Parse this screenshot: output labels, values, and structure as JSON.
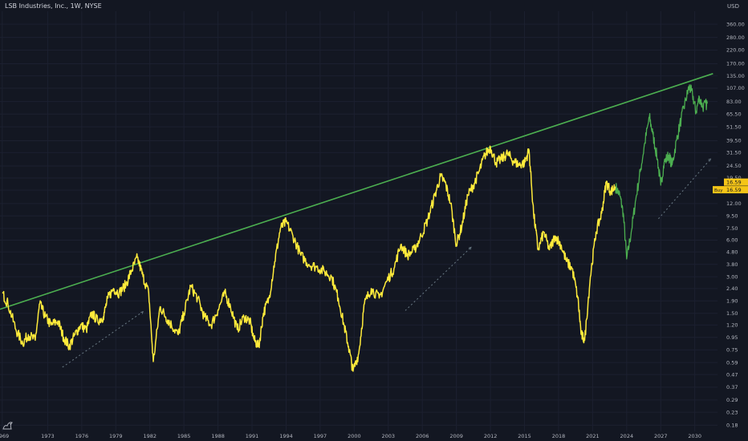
{
  "header": {
    "title": "LSB Industries, Inc., 1W, NYSE",
    "currency": "USD"
  },
  "colors": {
    "background": "#131722",
    "price_line": "#ffeb3b",
    "projection_line": "#4caf50",
    "trendline": "#4caf50",
    "dotted_guides": "#6a7a85",
    "axis_text": "#b2b5be",
    "price_badge": "#f5c518"
  },
  "chart_data": {
    "type": "line",
    "y_scale": "log",
    "ylim": [
      0.16,
      460
    ],
    "xlim": [
      1968.8,
      2032.0
    ],
    "y_ticks": [
      0.18,
      0.23,
      0.29,
      0.37,
      0.47,
      0.59,
      0.75,
      0.95,
      1.2,
      1.5,
      1.9,
      2.4,
      3.0,
      3.8,
      4.8,
      6.0,
      7.5,
      9.5,
      12.0,
      15.5,
      19.5,
      24.5,
      31.5,
      39.5,
      51.5,
      65.5,
      83.0,
      107.0,
      135.0,
      170.0,
      220.0,
      280.0,
      360.0
    ],
    "y_tick_labels": [
      "0.18",
      "0.23",
      "0.29",
      "0.37",
      "0.47",
      "0.59",
      "0.75",
      "0.95",
      "1.20",
      "1.50",
      "1.90",
      "2.40",
      "3.00",
      "3.80",
      "4.80",
      "6.00",
      "7.50",
      "9.50",
      "12.00",
      "15.50",
      "19.50",
      "24.50",
      "31.50",
      "39.50",
      "51.50",
      "65.50",
      "83.00",
      "107.00",
      "135.00",
      "170.00",
      "220.00",
      "280.00",
      "360.00"
    ],
    "x_ticks": [
      1969,
      1973,
      1976,
      1979,
      1982,
      1985,
      1988,
      1991,
      1994,
      1997,
      2000,
      2003,
      2006,
      2009,
      2012,
      2015,
      2018,
      2021,
      2024,
      2027,
      2030
    ],
    "x_tick_labels": [
      "1969",
      "1973",
      "1976",
      "1979",
      "1982",
      "1985",
      "1988",
      "1991",
      "1994",
      "1997",
      "2000",
      "2003",
      "2006",
      "2009",
      "2012",
      "2015",
      "2018",
      "2021",
      "2024",
      "2027",
      "2030"
    ],
    "current_price": 16.59,
    "current_price_label": "16.59",
    "badge_prefix": "Buy",
    "badge_value": "16.59",
    "series": [
      {
        "role": "price",
        "x": [
          1969.0,
          1969.5,
          1970.2,
          1970.8,
          1971.3,
          1971.9,
          1972.3,
          1972.8,
          1973.3,
          1973.9,
          1974.4,
          1974.9,
          1975.4,
          1975.9,
          1976.4,
          1976.9,
          1977.4,
          1977.9,
          1978.3,
          1978.8,
          1979.3,
          1979.9,
          1980.4,
          1980.9,
          1981.4,
          1981.9,
          1982.3,
          1982.9,
          1983.4,
          1983.9,
          1984.5,
          1985.0,
          1985.6,
          1986.2,
          1986.8,
          1987.4,
          1988.0,
          1988.6,
          1989.1,
          1989.7,
          1990.3,
          1990.8,
          1991.2,
          1991.6,
          1992.0,
          1992.5,
          1993.0,
          1993.5,
          1994.0,
          1994.6,
          1995.3,
          1996.0,
          1996.7,
          1997.4,
          1998.0,
          1998.6,
          1999.1,
          1999.5,
          1999.9,
          2000.4,
          2000.9,
          2001.5,
          2002.2,
          2002.9,
          2003.5,
          2004.1,
          2004.7,
          2005.3,
          2005.9,
          2006.5,
          2007.1,
          2007.6,
          2008.0,
          2008.5,
          2009.0,
          2009.5,
          2010.0,
          2010.5,
          2011.0,
          2011.5,
          2012.0,
          2012.5,
          2013.0,
          2013.5,
          2014.0,
          2014.5,
          2015.0,
          2015.4,
          2015.8,
          2016.2,
          2016.7,
          2017.2,
          2017.7,
          2018.2,
          2018.7,
          2019.2,
          2019.7,
          2020.0,
          2020.3,
          2020.8,
          2021.3,
          2021.8,
          2022.2,
          2022.6,
          2023.0
        ],
        "values": [
          2.2,
          1.8,
          1.1,
          0.85,
          1.0,
          0.9,
          1.8,
          1.4,
          1.2,
          1.3,
          0.95,
          0.8,
          1.0,
          1.2,
          1.1,
          1.5,
          1.3,
          1.4,
          2.0,
          2.4,
          2.2,
          2.6,
          3.4,
          4.3,
          3.0,
          2.2,
          0.6,
          1.7,
          1.4,
          1.2,
          1.0,
          1.5,
          2.5,
          2.0,
          1.4,
          1.2,
          1.6,
          2.2,
          1.7,
          1.1,
          1.4,
          1.3,
          0.9,
          0.8,
          1.5,
          2.0,
          4.0,
          7.5,
          8.5,
          6.5,
          4.5,
          3.8,
          3.6,
          3.3,
          3.0,
          2.0,
          1.2,
          0.8,
          0.5,
          0.7,
          1.8,
          2.4,
          2.0,
          2.8,
          3.5,
          5.5,
          4.5,
          5.0,
          6.5,
          9.0,
          14.0,
          20.0,
          18.0,
          12.0,
          5.5,
          8.0,
          14.0,
          17.0,
          22.0,
          30.0,
          35.0,
          26.0,
          28.0,
          31.0,
          27.0,
          25.0,
          26.0,
          33.0,
          10.0,
          5.0,
          7.0,
          5.0,
          6.5,
          5.5,
          4.0,
          3.5,
          2.0,
          1.0,
          0.9,
          3.0,
          7.0,
          10.0,
          18.0,
          15.0,
          16.59
        ]
      },
      {
        "role": "projection",
        "x": [
          2023.0,
          2023.4,
          2023.7,
          2024.0,
          2024.4,
          2024.8,
          2025.2,
          2025.6,
          2026.0,
          2026.3,
          2026.7,
          2027.0,
          2027.3,
          2027.7,
          2028.0,
          2028.4,
          2028.8,
          2029.2,
          2029.5,
          2029.8,
          2030.1,
          2030.4,
          2030.7,
          2031.1
        ],
        "values": [
          16.59,
          14.0,
          10.0,
          4.2,
          7.0,
          13.0,
          22.0,
          38.0,
          62.0,
          45.0,
          28.0,
          17.0,
          26.0,
          30.0,
          25.0,
          40.0,
          60.0,
          85.0,
          110.0,
          95.0,
          68.0,
          90.0,
          75.0,
          80.0
        ]
      }
    ],
    "trendline": {
      "x": [
        1968.8,
        2031.6
      ],
      "values": [
        1.62,
        141.0
      ]
    },
    "guides": [
      {
        "x": [
          1974.3,
          1981.4
        ],
        "values": [
          0.54,
          1.55
        ]
      },
      {
        "x": [
          2004.5,
          2010.3
        ],
        "values": [
          1.58,
          5.25
        ]
      },
      {
        "x": [
          2026.8,
          2031.4
        ],
        "values": [
          9.0,
          28.0
        ]
      }
    ]
  }
}
